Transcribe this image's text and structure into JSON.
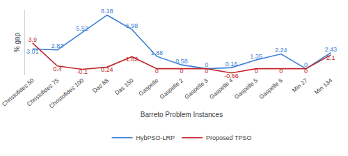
{
  "chart_data": {
    "type": "line",
    "x_label": "Barreto Problem Instances",
    "y_label": "% gap",
    "categories": [
      "Christofides 50",
      "Christofides 75",
      "Christofides 100",
      "Das 88",
      "Das 150",
      "Gaspelle",
      "Gaspelle 2",
      "Gaspelle 3",
      "Gaspelle 4",
      "Gaspelle 5",
      "Gaspelle 6",
      "Min 27",
      "Min 134"
    ],
    "series": [
      {
        "name": "HybPSO-LRP",
        "color": "#3a7fd5",
        "values": [
          3.01,
          2.87,
          5.52,
          8.18,
          5.98,
          1.88,
          0.58,
          0,
          0.16,
          1.35,
          2.24,
          0,
          2.43
        ]
      },
      {
        "name": "Proposed TPSO",
        "color": "#c0272d",
        "values": [
          3.9,
          0.4,
          -0.1,
          0.24,
          1.82,
          0,
          0,
          0,
          -0.66,
          0,
          0,
          0,
          2.1
        ]
      }
    ],
    "ylim": [
      -1,
      9
    ],
    "data_labels": true,
    "tick_labels": "x",
    "grid": false,
    "legend": "bottom"
  }
}
